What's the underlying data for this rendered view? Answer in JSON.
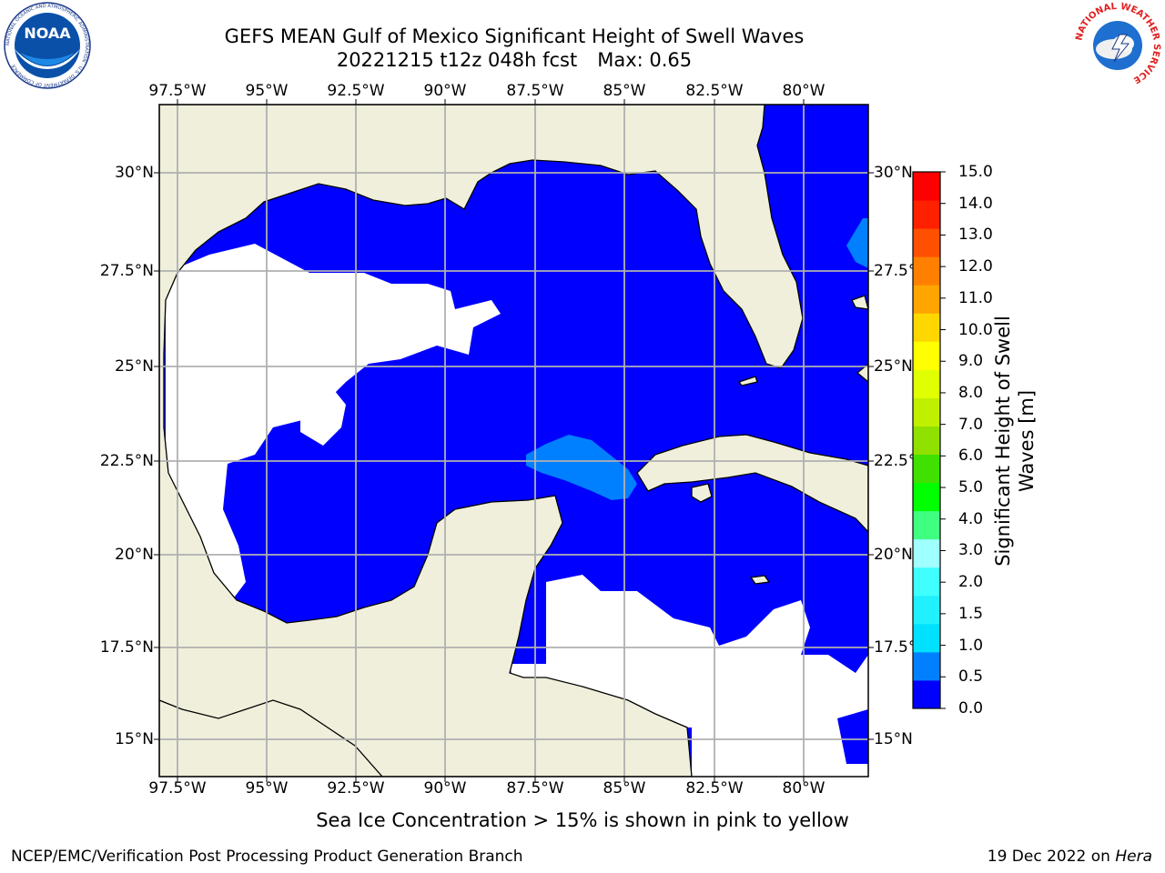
{
  "title": {
    "line1": "GEFS MEAN Gulf of Mexico Significant Height of Swell Waves",
    "run": "20221215 t12z 048h fcst",
    "max": "Max: 0.65"
  },
  "logos": {
    "left": {
      "icon": "noaa-logo",
      "text": "NOAA",
      "ring_text": "NATIONAL OCEANIC AND ATMOSPHERIC ADMINISTRATION · U.S. DEPARTMENT OF COMMERCE"
    },
    "right": {
      "icon": "nws-logo",
      "ring_text": "NATIONAL WEATHER SERVICE"
    }
  },
  "map": {
    "lon_labels": [
      "97.5°W",
      "95°W",
      "92.5°W",
      "90°W",
      "87.5°W",
      "85°W",
      "82.5°W",
      "80°W"
    ],
    "lat_labels": [
      "30°N",
      "27.5°N",
      "25°N",
      "22.5°N",
      "20°N",
      "17.5°N",
      "15°N"
    ],
    "land_color": "#efefdb",
    "grid_color": "#b0b0b0"
  },
  "colorbar": {
    "title_line1": "Significant Height of Swell",
    "title_line2": "Waves [m]",
    "labels": [
      "15.0",
      "14.0",
      "13.0",
      "12.0",
      "11.0",
      "10.0",
      "9.0",
      "8.0",
      "7.0",
      "6.0",
      "5.0",
      "4.0",
      "3.0",
      "2.0",
      "1.5",
      "1.0",
      "0.5",
      "0.0"
    ],
    "colors": [
      "#0000ff",
      "#0080ff",
      "#00e0ff",
      "#20f0ff",
      "#40ffff",
      "#a0ffff",
      "#40ff80",
      "#00ff00",
      "#40e000",
      "#90e000",
      "#c0f000",
      "#e0ff00",
      "#ffff00",
      "#ffd700",
      "#ffa500",
      "#ff8000",
      "#ff5000",
      "#ff2000",
      "#ff0000"
    ]
  },
  "footer": {
    "note": "Sea Ice Concentration > 15% is shown in pink to yellow",
    "left": "NCEP/EMC/Verification Post Processing Product Generation Branch",
    "right_date": "19 Dec 2022 on ",
    "right_host": "Hera"
  }
}
